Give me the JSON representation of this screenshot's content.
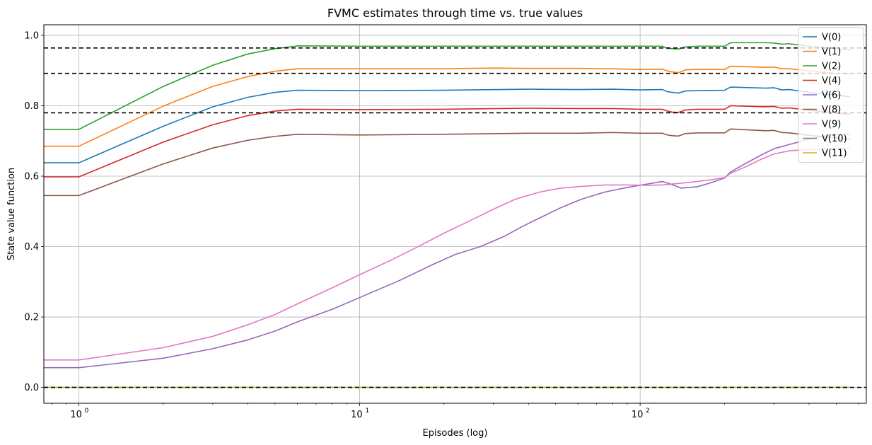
{
  "chart_data": {
    "type": "line",
    "title": "FVMC estimates through time vs. true values",
    "xlabel": "Episodes (log)",
    "ylabel": "State value function",
    "xscale": "log",
    "xlim": [
      0.75,
      640
    ],
    "ylim": [
      -0.045,
      1.03
    ],
    "x_ticks": [
      {
        "value": 1,
        "label": "10",
        "exp": "0"
      },
      {
        "value": 10,
        "label": "10",
        "exp": "1"
      },
      {
        "value": 100,
        "label": "10",
        "exp": "2"
      }
    ],
    "y_ticks": [
      {
        "value": 0.0,
        "label": "0.0"
      },
      {
        "value": 0.2,
        "label": "0.2"
      },
      {
        "value": 0.4,
        "label": "0.4"
      },
      {
        "value": 0.6,
        "label": "0.6"
      },
      {
        "value": 0.8,
        "label": "0.8"
      },
      {
        "value": 1.0,
        "label": "1.0"
      }
    ],
    "grid": true,
    "legend_position": "top-right",
    "true_values": [
      0.964,
      0.892,
      0.78,
      0.0
    ],
    "true_value_style": {
      "color": "#000000",
      "dash": "dashed"
    },
    "series": [
      {
        "name": "V(0)",
        "color": "#1f77b4",
        "points": [
          [
            0.75,
            0.638
          ],
          [
            1,
            0.638
          ],
          [
            2,
            0.742
          ],
          [
            3,
            0.797
          ],
          [
            4,
            0.824
          ],
          [
            5,
            0.838
          ],
          [
            6,
            0.844
          ],
          [
            10,
            0.843
          ],
          [
            20,
            0.844
          ],
          [
            40,
            0.847
          ],
          [
            60,
            0.846
          ],
          [
            80,
            0.847
          ],
          [
            100,
            0.845
          ],
          [
            120,
            0.846
          ],
          [
            125,
            0.84
          ],
          [
            130,
            0.838
          ],
          [
            137,
            0.836
          ],
          [
            145,
            0.842
          ],
          [
            160,
            0.843
          ],
          [
            200,
            0.844
          ],
          [
            210,
            0.853
          ],
          [
            280,
            0.85
          ],
          [
            300,
            0.851
          ],
          [
            320,
            0.845
          ],
          [
            340,
            0.846
          ],
          [
            400,
            0.838
          ],
          [
            500,
            0.83
          ],
          [
            560,
            0.826
          ]
        ]
      },
      {
        "name": "V(1)",
        "color": "#ff7f0e",
        "points": [
          [
            0.75,
            0.685
          ],
          [
            1,
            0.685
          ],
          [
            2,
            0.799
          ],
          [
            3,
            0.855
          ],
          [
            4,
            0.883
          ],
          [
            5,
            0.898
          ],
          [
            6,
            0.905
          ],
          [
            10,
            0.905
          ],
          [
            20,
            0.905
          ],
          [
            30,
            0.907
          ],
          [
            40,
            0.906
          ],
          [
            60,
            0.906
          ],
          [
            80,
            0.905
          ],
          [
            100,
            0.903
          ],
          [
            120,
            0.904
          ],
          [
            125,
            0.899
          ],
          [
            130,
            0.896
          ],
          [
            137,
            0.894
          ],
          [
            145,
            0.902
          ],
          [
            160,
            0.903
          ],
          [
            200,
            0.903
          ],
          [
            210,
            0.912
          ],
          [
            280,
            0.909
          ],
          [
            300,
            0.91
          ],
          [
            320,
            0.905
          ],
          [
            340,
            0.905
          ],
          [
            400,
            0.899
          ],
          [
            500,
            0.892
          ],
          [
            560,
            0.89
          ]
        ]
      },
      {
        "name": "V(2)",
        "color": "#2ca02c",
        "points": [
          [
            0.75,
            0.733
          ],
          [
            1,
            0.733
          ],
          [
            2,
            0.855
          ],
          [
            3,
            0.915
          ],
          [
            4,
            0.947
          ],
          [
            5,
            0.962
          ],
          [
            6,
            0.97
          ],
          [
            10,
            0.969
          ],
          [
            20,
            0.969
          ],
          [
            40,
            0.969
          ],
          [
            60,
            0.969
          ],
          [
            80,
            0.969
          ],
          [
            100,
            0.969
          ],
          [
            120,
            0.969
          ],
          [
            125,
            0.963
          ],
          [
            130,
            0.962
          ],
          [
            137,
            0.961
          ],
          [
            145,
            0.967
          ],
          [
            160,
            0.969
          ],
          [
            200,
            0.969
          ],
          [
            210,
            0.979
          ],
          [
            280,
            0.979
          ],
          [
            300,
            0.978
          ],
          [
            320,
            0.975
          ],
          [
            340,
            0.976
          ],
          [
            400,
            0.969
          ],
          [
            500,
            0.962
          ],
          [
            560,
            0.958
          ]
        ]
      },
      {
        "name": "V(4)",
        "color": "#d62728",
        "points": [
          [
            0.75,
            0.598
          ],
          [
            1,
            0.598
          ],
          [
            2,
            0.697
          ],
          [
            3,
            0.746
          ],
          [
            4,
            0.772
          ],
          [
            5,
            0.785
          ],
          [
            6,
            0.79
          ],
          [
            10,
            0.789
          ],
          [
            20,
            0.79
          ],
          [
            40,
            0.793
          ],
          [
            60,
            0.792
          ],
          [
            80,
            0.792
          ],
          [
            100,
            0.79
          ],
          [
            120,
            0.79
          ],
          [
            125,
            0.785
          ],
          [
            130,
            0.782
          ],
          [
            137,
            0.781
          ],
          [
            145,
            0.788
          ],
          [
            160,
            0.79
          ],
          [
            200,
            0.79
          ],
          [
            210,
            0.8
          ],
          [
            280,
            0.797
          ],
          [
            300,
            0.798
          ],
          [
            320,
            0.793
          ],
          [
            340,
            0.794
          ],
          [
            400,
            0.787
          ],
          [
            500,
            0.78
          ],
          [
            560,
            0.776
          ]
        ]
      },
      {
        "name": "V(6)",
        "color": "#9467bd",
        "points": [
          [
            0.75,
            0.056
          ],
          [
            1,
            0.056
          ],
          [
            2,
            0.083
          ],
          [
            3,
            0.11
          ],
          [
            4,
            0.135
          ],
          [
            5,
            0.16
          ],
          [
            6,
            0.186
          ],
          [
            8,
            0.222
          ],
          [
            10,
            0.255
          ],
          [
            14,
            0.305
          ],
          [
            18,
            0.347
          ],
          [
            22,
            0.378
          ],
          [
            27,
            0.4
          ],
          [
            33,
            0.43
          ],
          [
            38,
            0.457
          ],
          [
            44,
            0.482
          ],
          [
            52,
            0.51
          ],
          [
            62,
            0.535
          ],
          [
            75,
            0.555
          ],
          [
            90,
            0.568
          ],
          [
            105,
            0.577
          ],
          [
            120,
            0.585
          ],
          [
            128,
            0.578
          ],
          [
            140,
            0.566
          ],
          [
            160,
            0.57
          ],
          [
            180,
            0.582
          ],
          [
            200,
            0.595
          ],
          [
            210,
            0.612
          ],
          [
            240,
            0.638
          ],
          [
            270,
            0.66
          ],
          [
            300,
            0.678
          ],
          [
            340,
            0.69
          ],
          [
            400,
            0.705
          ],
          [
            480,
            0.718
          ],
          [
            560,
            0.72
          ]
        ]
      },
      {
        "name": "V(8)",
        "color": "#8c564b",
        "points": [
          [
            0.75,
            0.545
          ],
          [
            1,
            0.545
          ],
          [
            2,
            0.635
          ],
          [
            3,
            0.68
          ],
          [
            4,
            0.702
          ],
          [
            5,
            0.713
          ],
          [
            6,
            0.719
          ],
          [
            10,
            0.717
          ],
          [
            20,
            0.719
          ],
          [
            40,
            0.722
          ],
          [
            60,
            0.722
          ],
          [
            80,
            0.724
          ],
          [
            100,
            0.722
          ],
          [
            120,
            0.722
          ],
          [
            125,
            0.717
          ],
          [
            130,
            0.715
          ],
          [
            137,
            0.714
          ],
          [
            145,
            0.721
          ],
          [
            160,
            0.723
          ],
          [
            200,
            0.723
          ],
          [
            210,
            0.734
          ],
          [
            280,
            0.729
          ],
          [
            300,
            0.73
          ],
          [
            320,
            0.724
          ],
          [
            340,
            0.723
          ],
          [
            400,
            0.716
          ],
          [
            500,
            0.709
          ],
          [
            560,
            0.705
          ]
        ]
      },
      {
        "name": "V(9)",
        "color": "#e377c2",
        "points": [
          [
            0.75,
            0.078
          ],
          [
            1,
            0.078
          ],
          [
            2,
            0.113
          ],
          [
            3,
            0.145
          ],
          [
            4,
            0.178
          ],
          [
            5,
            0.207
          ],
          [
            6,
            0.237
          ],
          [
            8,
            0.283
          ],
          [
            10,
            0.32
          ],
          [
            13,
            0.362
          ],
          [
            16,
            0.398
          ],
          [
            20,
            0.438
          ],
          [
            25,
            0.475
          ],
          [
            30,
            0.506
          ],
          [
            36,
            0.535
          ],
          [
            44,
            0.555
          ],
          [
            52,
            0.566
          ],
          [
            62,
            0.571
          ],
          [
            75,
            0.575
          ],
          [
            90,
            0.575
          ],
          [
            105,
            0.574
          ],
          [
            120,
            0.575
          ],
          [
            140,
            0.58
          ],
          [
            160,
            0.585
          ],
          [
            180,
            0.59
          ],
          [
            200,
            0.596
          ],
          [
            210,
            0.608
          ],
          [
            240,
            0.628
          ],
          [
            270,
            0.648
          ],
          [
            300,
            0.663
          ],
          [
            340,
            0.672
          ],
          [
            400,
            0.676
          ],
          [
            480,
            0.678
          ],
          [
            560,
            0.679
          ]
        ]
      },
      {
        "name": "V(10)",
        "color": "#7f7f7f",
        "points": [
          [
            0.75,
            0.0
          ],
          [
            560,
            0.0
          ]
        ]
      },
      {
        "name": "V(11)",
        "color": "#bcbd22",
        "points": [
          [
            0.75,
            0.0
          ],
          [
            560,
            0.0
          ]
        ]
      }
    ]
  }
}
